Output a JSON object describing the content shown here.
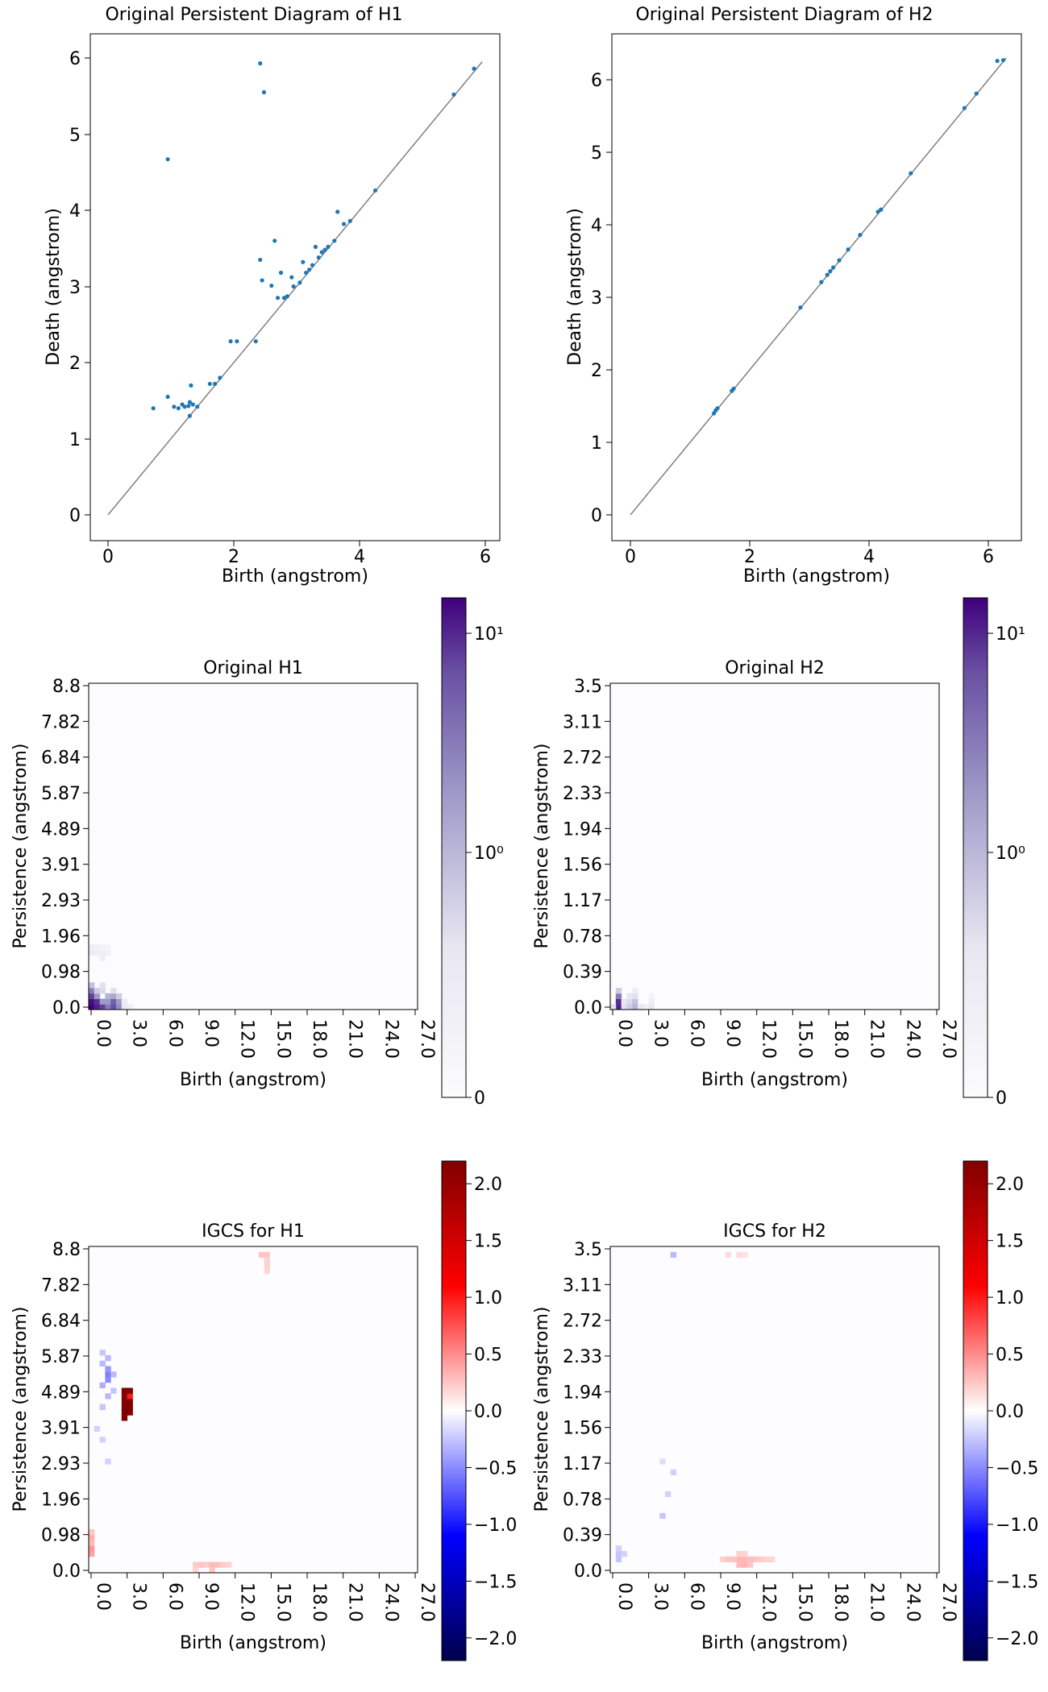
{
  "chart_data": [
    {
      "type": "scatter",
      "title": "Original Persistent Diagram of H1",
      "xlabel": "Birth (angstrom)",
      "ylabel": "Death (angstrom)",
      "xlim": [
        -0.3,
        6.2
      ],
      "ylim": [
        -0.3,
        6.2
      ],
      "xticks": [
        "0",
        "2",
        "4",
        "6"
      ],
      "yticks": [
        "0",
        "1",
        "2",
        "3",
        "4",
        "5",
        "6"
      ],
      "diagonal": [
        0,
        5.95
      ],
      "point_color": "#1f77b4",
      "points": [
        [
          0.72,
          1.4
        ],
        [
          0.95,
          1.55
        ],
        [
          1.05,
          1.42
        ],
        [
          1.12,
          1.4
        ],
        [
          1.18,
          1.45
        ],
        [
          1.22,
          1.42
        ],
        [
          1.28,
          1.43
        ],
        [
          1.3,
          1.48
        ],
        [
          1.35,
          1.45
        ],
        [
          1.32,
          1.7
        ],
        [
          1.3,
          1.3
        ],
        [
          1.42,
          1.42
        ],
        [
          1.62,
          1.72
        ],
        [
          1.7,
          1.72
        ],
        [
          1.78,
          1.8
        ],
        [
          1.95,
          2.28
        ],
        [
          2.05,
          2.28
        ],
        [
          2.35,
          2.28
        ],
        [
          0.95,
          4.67
        ],
        [
          2.42,
          5.93
        ],
        [
          2.48,
          5.55
        ],
        [
          2.42,
          3.35
        ],
        [
          2.45,
          3.08
        ],
        [
          2.6,
          3.01
        ],
        [
          2.65,
          3.6
        ],
        [
          2.7,
          2.85
        ],
        [
          2.75,
          3.18
        ],
        [
          2.8,
          2.85
        ],
        [
          2.85,
          2.87
        ],
        [
          2.92,
          3.12
        ],
        [
          2.95,
          3.0
        ],
        [
          3.05,
          3.05
        ],
        [
          3.1,
          3.32
        ],
        [
          3.15,
          3.18
        ],
        [
          3.2,
          3.22
        ],
        [
          3.25,
          3.28
        ],
        [
          3.3,
          3.52
        ],
        [
          3.35,
          3.38
        ],
        [
          3.4,
          3.45
        ],
        [
          3.45,
          3.48
        ],
        [
          3.5,
          3.52
        ],
        [
          3.6,
          3.6
        ],
        [
          3.65,
          3.98
        ],
        [
          3.75,
          3.82
        ],
        [
          3.85,
          3.86
        ],
        [
          4.25,
          4.26
        ],
        [
          5.5,
          5.52
        ],
        [
          5.82,
          5.86
        ]
      ]
    },
    {
      "type": "scatter",
      "title": "Original Persistent Diagram of H2",
      "xlabel": "Birth (angstrom)",
      "ylabel": "Death (angstrom)",
      "xlim": [
        -0.3,
        6.6
      ],
      "ylim": [
        -0.3,
        6.6
      ],
      "xticks": [
        "0",
        "2",
        "4",
        "6"
      ],
      "yticks": [
        "0",
        "1",
        "2",
        "3",
        "4",
        "5",
        "6"
      ],
      "diagonal": [
        0,
        6.3
      ],
      "point_color": "#1f77b4",
      "points": [
        [
          1.4,
          1.4
        ],
        [
          1.43,
          1.44
        ],
        [
          1.46,
          1.47
        ],
        [
          1.7,
          1.71
        ],
        [
          1.73,
          1.74
        ],
        [
          2.85,
          2.86
        ],
        [
          3.2,
          3.21
        ],
        [
          3.3,
          3.31
        ],
        [
          3.35,
          3.36
        ],
        [
          3.4,
          3.41
        ],
        [
          3.5,
          3.51
        ],
        [
          3.65,
          3.66
        ],
        [
          3.85,
          3.86
        ],
        [
          4.15,
          4.18
        ],
        [
          4.2,
          4.21
        ],
        [
          4.7,
          4.71
        ],
        [
          5.6,
          5.61
        ],
        [
          5.8,
          5.81
        ],
        [
          6.15,
          6.26
        ],
        [
          6.25,
          6.27
        ]
      ]
    },
    {
      "type": "heatmap",
      "title": "Original H1",
      "xlabel": "Birth (angstrom)",
      "ylabel": "Persistence (angstrom)",
      "xticks": [
        "0.0",
        "3.0",
        "6.0",
        "9.0",
        "12.0",
        "15.0",
        "18.0",
        "21.0",
        "24.0",
        "27.0"
      ],
      "yticks": [
        "0.0",
        "0.98",
        "1.96",
        "2.93",
        "3.91",
        "4.89",
        "5.87",
        "6.84",
        "7.82",
        "8.8"
      ],
      "colormap": "Purples",
      "colorbar_ticks": [
        "10¹",
        "10⁰",
        "0"
      ],
      "hot_cells": [
        [
          0,
          0,
          1.0
        ],
        [
          0,
          1,
          0.95
        ],
        [
          0,
          2,
          0.8
        ],
        [
          0,
          3,
          0.6
        ],
        [
          0,
          4,
          0.35
        ],
        [
          1,
          0,
          0.9
        ],
        [
          1,
          1,
          0.85
        ],
        [
          1,
          2,
          0.5
        ],
        [
          1,
          3,
          0.3
        ],
        [
          2,
          0,
          0.8
        ],
        [
          2,
          1,
          0.5
        ],
        [
          2,
          3,
          0.25
        ],
        [
          2,
          4,
          0.2
        ],
        [
          3,
          0,
          0.6
        ],
        [
          3,
          1,
          0.5
        ],
        [
          3,
          2,
          0.4
        ],
        [
          4,
          0,
          0.75
        ],
        [
          4,
          1,
          0.7
        ],
        [
          4,
          2,
          0.45
        ],
        [
          4,
          3,
          0.2
        ],
        [
          5,
          0,
          0.55
        ],
        [
          5,
          1,
          0.5
        ],
        [
          5,
          2,
          0.3
        ],
        [
          6,
          0,
          0.15
        ],
        [
          6,
          1,
          0.12
        ],
        [
          7,
          0,
          0.08
        ],
        [
          0,
          10,
          0.12
        ],
        [
          0,
          11,
          0.1
        ],
        [
          1,
          10,
          0.1
        ],
        [
          1,
          11,
          0.08
        ],
        [
          2,
          9,
          0.1
        ],
        [
          2,
          10,
          0.1
        ],
        [
          2,
          11,
          0.06
        ],
        [
          3,
          10,
          0.08
        ],
        [
          3,
          11,
          0.06
        ]
      ]
    },
    {
      "type": "heatmap",
      "title": "Original H2",
      "xlabel": "Birth (angstrom)",
      "ylabel": "Persistence (angstrom)",
      "xticks": [
        "0.0",
        "3.0",
        "6.0",
        "9.0",
        "12.0",
        "15.0",
        "18.0",
        "21.0",
        "24.0",
        "27.0"
      ],
      "yticks": [
        "0.0",
        "0.39",
        "0.78",
        "1.17",
        "1.56",
        "1.94",
        "2.33",
        "2.72",
        "3.11",
        "3.5"
      ],
      "colormap": "Purples",
      "colorbar_ticks": [
        "10¹",
        "10⁰",
        "0"
      ],
      "hot_cells": [
        [
          1,
          0,
          0.9
        ],
        [
          1,
          1,
          0.85
        ],
        [
          1,
          2,
          0.6
        ],
        [
          1,
          3,
          0.3
        ],
        [
          0,
          0,
          0.2
        ],
        [
          2,
          0,
          0.2
        ],
        [
          2,
          1,
          0.15
        ],
        [
          3,
          0,
          0.3
        ],
        [
          3,
          1,
          0.25
        ],
        [
          3,
          2,
          0.15
        ],
        [
          4,
          0,
          0.4
        ],
        [
          4,
          1,
          0.35
        ],
        [
          4,
          2,
          0.2
        ],
        [
          4,
          3,
          0.1
        ],
        [
          5,
          0,
          0.15
        ],
        [
          6,
          0,
          0.08
        ],
        [
          7,
          0,
          0.15
        ],
        [
          7,
          1,
          0.1
        ],
        [
          7,
          2,
          0.06
        ]
      ]
    },
    {
      "type": "heatmap",
      "title": "IGCS for H1",
      "xlabel": "Birth (angstrom)",
      "ylabel": "Persistence (angstrom)",
      "xticks": [
        "0.0",
        "3.0",
        "6.0",
        "9.0",
        "12.0",
        "15.0",
        "18.0",
        "21.0",
        "24.0",
        "27.0"
      ],
      "yticks": [
        "0.0",
        "0.98",
        "1.96",
        "2.93",
        "3.91",
        "4.89",
        "5.87",
        "6.84",
        "7.82",
        "8.8"
      ],
      "colormap": "seismic",
      "vlim": [
        -2.2,
        2.2
      ],
      "colorbar_ticks": [
        "2.0",
        "1.5",
        "1.0",
        "0.5",
        "0.0",
        "−0.5",
        "−1.0",
        "−1.5",
        "−2.0"
      ],
      "hot_cells": [
        [
          6,
          28,
          2.2
        ],
        [
          6,
          29,
          2.2
        ],
        [
          7,
          29,
          2.2
        ],
        [
          6,
          30,
          2.2
        ],
        [
          7,
          30,
          2.2
        ],
        [
          6,
          31,
          2.2
        ],
        [
          7,
          31,
          2.2
        ],
        [
          6,
          32,
          2.2
        ],
        [
          7,
          32,
          1.0
        ],
        [
          6,
          33,
          2.2
        ],
        [
          7,
          33,
          2.2
        ],
        [
          0,
          3,
          0.4
        ],
        [
          0,
          4,
          0.45
        ],
        [
          0,
          5,
          0.3
        ],
        [
          0,
          6,
          0.35
        ],
        [
          0,
          7,
          0.25
        ],
        [
          3,
          35,
          -0.5
        ],
        [
          3,
          36,
          -0.55
        ],
        [
          3,
          37,
          -0.45
        ],
        [
          2,
          34,
          -0.35
        ],
        [
          4,
          36,
          -0.3
        ],
        [
          2,
          38,
          -0.3
        ],
        [
          3,
          39,
          -0.3
        ],
        [
          2,
          40,
          -0.25
        ],
        [
          3,
          32,
          -0.3
        ],
        [
          2,
          30,
          -0.25
        ],
        [
          4,
          33,
          -0.25
        ],
        [
          1,
          26,
          -0.2
        ],
        [
          2,
          24,
          -0.2
        ],
        [
          3,
          20,
          -0.2
        ],
        [
          19,
          1,
          0.22
        ],
        [
          20,
          1,
          0.25
        ],
        [
          21,
          1,
          0.22
        ],
        [
          22,
          1,
          0.3
        ],
        [
          23,
          1,
          0.28
        ],
        [
          24,
          1,
          0.22
        ],
        [
          25,
          1,
          0.2
        ],
        [
          22,
          0,
          0.25
        ],
        [
          19,
          0,
          0.2
        ],
        [
          31,
          58,
          0.25
        ],
        [
          32,
          58,
          0.25
        ],
        [
          32,
          57,
          0.2
        ],
        [
          32,
          56,
          0.2
        ],
        [
          32,
          55,
          0.18
        ]
      ]
    },
    {
      "type": "heatmap",
      "title": "IGCS for H2",
      "xlabel": "Birth (angstrom)",
      "ylabel": "Persistence (angstrom)",
      "xticks": [
        "0.0",
        "3.0",
        "6.0",
        "9.0",
        "12.0",
        "15.0",
        "18.0",
        "21.0",
        "24.0",
        "27.0"
      ],
      "yticks": [
        "0.0",
        "0.39",
        "0.78",
        "1.17",
        "1.56",
        "1.94",
        "2.33",
        "2.72",
        "3.11",
        "3.5"
      ],
      "colormap": "seismic",
      "vlim": [
        -2.2,
        2.2
      ],
      "colorbar_ticks": [
        "2.0",
        "1.5",
        "1.0",
        "0.5",
        "0.0",
        "−0.5",
        "−1.0",
        "−1.5",
        "−2.0"
      ],
      "hot_cells": [
        [
          11,
          58,
          -0.3
        ],
        [
          21,
          58,
          0.15
        ],
        [
          23,
          58,
          0.15
        ],
        [
          24,
          58,
          0.12
        ],
        [
          1,
          3,
          -0.25
        ],
        [
          1,
          4,
          -0.2
        ],
        [
          1,
          2,
          -0.25
        ],
        [
          2,
          3,
          -0.2
        ],
        [
          9,
          10,
          -0.25
        ],
        [
          10,
          14,
          -0.2
        ],
        [
          11,
          18,
          -0.2
        ],
        [
          9,
          20,
          -0.15
        ],
        [
          23,
          2,
          0.3
        ],
        [
          24,
          2,
          0.3
        ],
        [
          25,
          2,
          0.28
        ],
        [
          26,
          2,
          0.25
        ],
        [
          27,
          2,
          0.22
        ],
        [
          23,
          1,
          0.3
        ],
        [
          24,
          1,
          0.32
        ],
        [
          25,
          1,
          0.25
        ],
        [
          23,
          3,
          0.2
        ],
        [
          24,
          3,
          0.18
        ],
        [
          20,
          2,
          0.2
        ],
        [
          21,
          2,
          0.25
        ],
        [
          22,
          2,
          0.25
        ],
        [
          28,
          2,
          0.2
        ],
        [
          29,
          2,
          0.18
        ]
      ]
    }
  ]
}
